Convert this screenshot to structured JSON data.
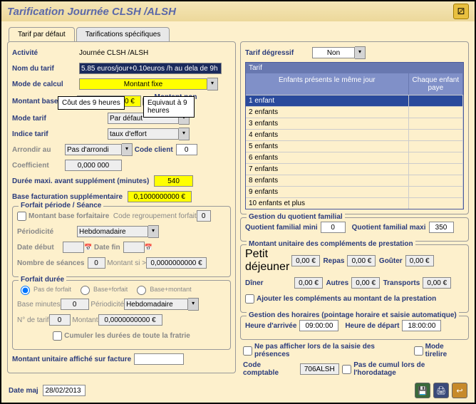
{
  "header": {
    "title": "Tarification Journée CLSH /ALSH"
  },
  "tabs": {
    "t1": "Tarif par défaut",
    "t2": "Tarifications spécifiques"
  },
  "left": {
    "activite_lbl": "Activité",
    "activite_val": "Journée CLSH /ALSH",
    "nom_lbl": "Nom du tarif",
    "nom_val": "5.85 euros/jour+0.10euros /h au dela de 9h",
    "mode_lbl": "Mode de calcul",
    "mode_val": "Montant fixe",
    "mbase_lbl": "Montant base",
    "mbase_val": "5,8500000000 €",
    "nocumul": "Montant non cumulable",
    "mtarif_lbl": "Mode tarif",
    "mtarif_val": "Par défaut",
    "idx_lbl": "Indice tarif",
    "idx_val": "taux d'effort",
    "arr_lbl": "Arrondir au",
    "arr_val": "Pas d'arrondi",
    "codecli_lbl": "Code client",
    "codecli_val": "0",
    "coef_lbl": "Coefficient",
    "coef_val": "0,000 000",
    "dmax_lbl": "Durée maxi. avant supplément (minutes)",
    "dmax_val": "540",
    "bfs_lbl": "Base facturation supplémentaire",
    "bfs_val": "0,1000000000 €",
    "callout1": "Côut des 9 heures",
    "callout2": "Equivaut à 9 heures",
    "forfait": {
      "title": "Forfait période / Séance",
      "mbf": "Montant base forfaitaire",
      "crf": "Code regroupement forfait",
      "crf_val": "0",
      "period": "Périodicité",
      "period_val": "Hebdomadaire",
      "ddebut": "Date début",
      "dfin": "Date fin",
      "nbs": "Nombre de séances",
      "nbs_val": "0",
      "msi": "Montant si >",
      "msi_val": "0,0000000000 €"
    },
    "fduree": {
      "title": "Forfait durée",
      "r1": "Pas de forfait",
      "r2": "Base+forfait",
      "r3": "Base+montant",
      "bmin": "Base minutes",
      "bmin_val": "0",
      "period": "Périodicité",
      "period_val": "Hebdomadaire",
      "ntarif": "N° de tarif",
      "ntarif_val": "0",
      "mont": "Montant",
      "mont_val": "0,0000000000 €",
      "cumul": "Cumuler les durées de toute la fratrie"
    },
    "muf": "Montant unitaire affiché sur facture"
  },
  "right": {
    "deg_lbl": "Tarif dégressif",
    "deg_val": "Non",
    "grid": {
      "title": "Tarif",
      "h1": "Enfants présents le même jour",
      "h2": "Chaque enfant paye",
      "rows": [
        "1 enfant",
        "2 enfants",
        "3 enfants",
        "4 enfants",
        "5 enfants",
        "6 enfants",
        "7 enfants",
        "8 enfants",
        "9 enfants",
        "10 enfants et plus"
      ]
    },
    "qf": {
      "title": "Gestion du quotient familial",
      "mini": "Quotient familial mini",
      "mini_val": "0",
      "maxi": "Quotient familial maxi",
      "maxi_val": "350"
    },
    "compl": {
      "title": "Montant unitaire des compléments de prestation",
      "pd": "Petit déjeuner",
      "repas": "Repas",
      "gouter": "Goûter",
      "diner": "Dîner",
      "autres": "Autres",
      "trans": "Transports",
      "v": "0,00 €",
      "ajout": "Ajouter les compléments au montant de la prestation"
    },
    "hor": {
      "title": "Gestion des horaires (pointage horaire et saisie automatique)",
      "ha": "Heure d'arrivée",
      "ha_val": "09:00:00",
      "hd": "Heure de départ",
      "hd_val": "18:00:00"
    },
    "noaff": "Ne pas afficher lors de la saisie des présences",
    "tirelire": "Mode tirelire",
    "cc": "Code comptable",
    "cc_val": "706ALSH",
    "nocumul": "Pas de cumul lors de l'horodatage"
  },
  "footer": {
    "dm": "Date maj",
    "dm_val": "28/02/2013"
  }
}
